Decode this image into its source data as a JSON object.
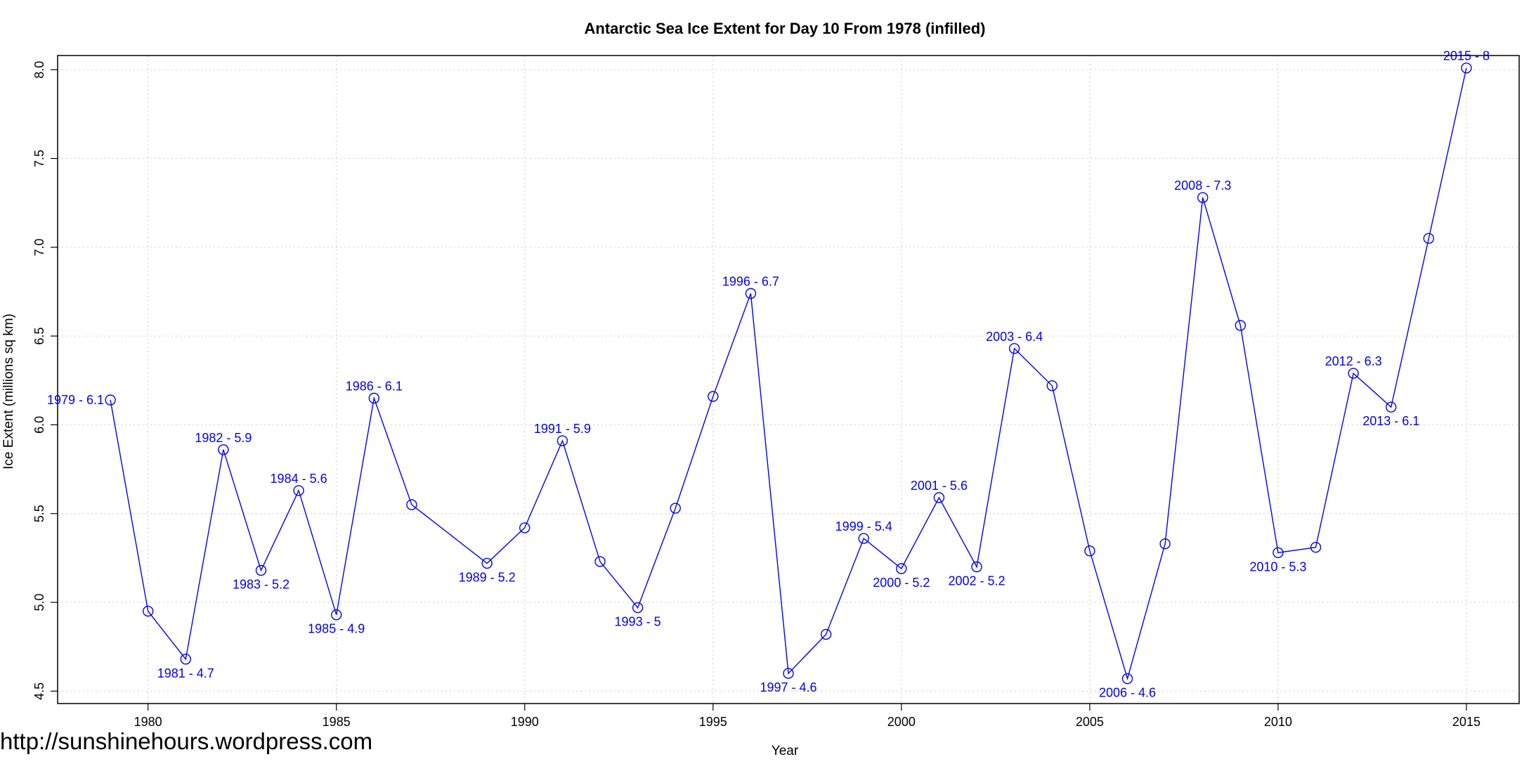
{
  "chart_data": {
    "type": "line",
    "title": "Antarctic Sea Ice Extent for Day 10 From 1978 (infilled)",
    "xlabel": "Year",
    "ylabel": "Ice Extent (millions sq km)",
    "xlim": [
      1977.6,
      2016.4
    ],
    "ylim": [
      4.43,
      8.08
    ],
    "x_ticks": [
      1980,
      1985,
      1990,
      1995,
      2000,
      2005,
      2010,
      2015
    ],
    "y_ticks": [
      4.5,
      5.0,
      5.5,
      6.0,
      6.5,
      7.0,
      7.5,
      8.0
    ],
    "y_tick_labels": [
      "4.5",
      "5.0",
      "5.5",
      "6.0",
      "6.5",
      "7.0",
      "7.5",
      "8.0"
    ],
    "grid": true,
    "series_color": "#0000ff",
    "grid_color": "#d3d3d3",
    "series": [
      {
        "x": [
          1979,
          1980,
          1981,
          1982,
          1983,
          1984,
          1985,
          1986,
          1987,
          1989,
          1990,
          1991,
          1992,
          1993,
          1994,
          1995,
          1996,
          1997,
          1998,
          1999,
          2000,
          2001,
          2002,
          2003,
          2004,
          2005,
          2006,
          2007,
          2008,
          2009,
          2010,
          2011,
          2012,
          2013,
          2014,
          2015
        ],
        "y": [
          6.14,
          4.95,
          4.68,
          5.86,
          5.18,
          5.63,
          4.93,
          6.15,
          5.55,
          5.22,
          5.42,
          5.91,
          5.23,
          4.97,
          5.53,
          6.16,
          6.74,
          4.6,
          4.82,
          5.36,
          5.19,
          5.59,
          5.2,
          6.43,
          6.22,
          5.29,
          4.57,
          5.33,
          7.28,
          6.56,
          5.28,
          5.31,
          6.29,
          6.1,
          7.05,
          8.01
        ]
      }
    ],
    "annotations": [
      {
        "x": 1979,
        "y": 6.14,
        "text": "1979 - 6.1",
        "pos": "left"
      },
      {
        "x": 1981,
        "y": 4.68,
        "text": "1981 - 4.7",
        "pos": "below"
      },
      {
        "x": 1982,
        "y": 5.86,
        "text": "1982 - 5.9",
        "pos": "above"
      },
      {
        "x": 1983,
        "y": 5.18,
        "text": "1983 - 5.2",
        "pos": "below"
      },
      {
        "x": 1984,
        "y": 5.63,
        "text": "1984 - 5.6",
        "pos": "above"
      },
      {
        "x": 1985,
        "y": 4.93,
        "text": "1985 - 4.9",
        "pos": "below"
      },
      {
        "x": 1986,
        "y": 6.15,
        "text": "1986 - 6.1",
        "pos": "above"
      },
      {
        "x": 1989,
        "y": 5.22,
        "text": "1989 - 5.2",
        "pos": "below"
      },
      {
        "x": 1991,
        "y": 5.91,
        "text": "1991 - 5.9",
        "pos": "above"
      },
      {
        "x": 1993,
        "y": 4.97,
        "text": "1993 - 5",
        "pos": "below"
      },
      {
        "x": 1996,
        "y": 6.74,
        "text": "1996 - 6.7",
        "pos": "above"
      },
      {
        "x": 1997,
        "y": 4.6,
        "text": "1997 - 4.6",
        "pos": "below"
      },
      {
        "x": 1999,
        "y": 5.36,
        "text": "1999 - 5.4",
        "pos": "above"
      },
      {
        "x": 2000,
        "y": 5.19,
        "text": "2000 - 5.2",
        "pos": "below"
      },
      {
        "x": 2001,
        "y": 5.59,
        "text": "2001 - 5.6",
        "pos": "above"
      },
      {
        "x": 2002,
        "y": 5.2,
        "text": "2002 - 5.2",
        "pos": "below"
      },
      {
        "x": 2003,
        "y": 6.43,
        "text": "2003 - 6.4",
        "pos": "above"
      },
      {
        "x": 2006,
        "y": 4.57,
        "text": "2006 - 4.6",
        "pos": "below"
      },
      {
        "x": 2008,
        "y": 7.28,
        "text": "2008 - 7.3",
        "pos": "above"
      },
      {
        "x": 2010,
        "y": 5.28,
        "text": "2010 - 5.3",
        "pos": "below"
      },
      {
        "x": 2012,
        "y": 6.29,
        "text": "2012 - 6.3",
        "pos": "above"
      },
      {
        "x": 2013,
        "y": 6.1,
        "text": "2013 - 6.1",
        "pos": "below"
      },
      {
        "x": 2015,
        "y": 8.01,
        "text": "2015 - 8",
        "pos": "above"
      }
    ]
  },
  "watermark": "http://sunshinehours.wordpress.com"
}
